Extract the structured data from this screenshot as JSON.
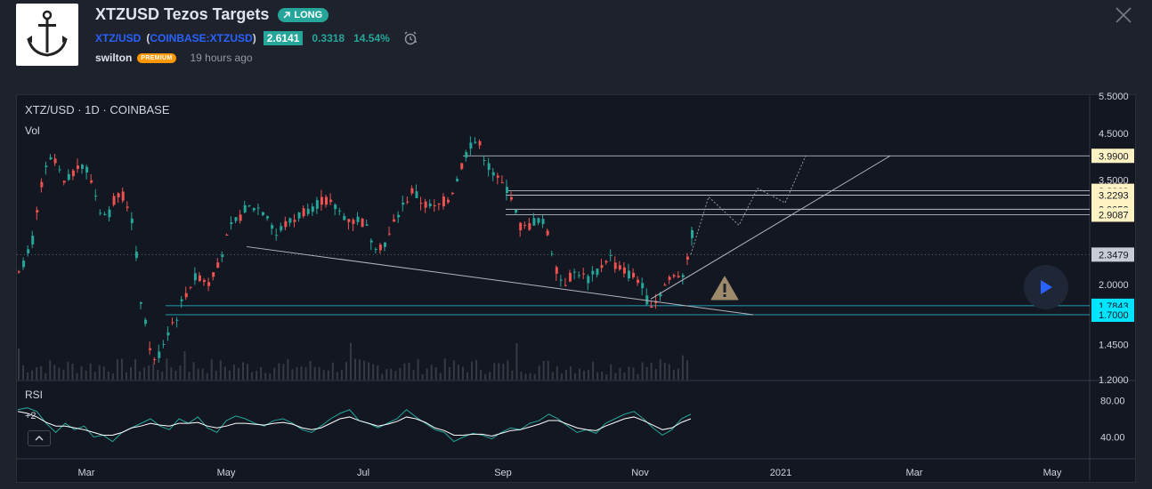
{
  "header": {
    "title": "XTZUSD Tezos Targets",
    "badge": "LONG",
    "symbol_short": "XTZ/USD",
    "symbol_full": "COINBASE:XTZUSD",
    "paren_open": "(",
    "paren_close": ")",
    "price": "2.6141",
    "change": "0.3318",
    "change_pct": "14.54%",
    "author": "swilton",
    "author_badge": "PREMIUM",
    "published": "19 hours ago"
  },
  "chart": {
    "legend": "XTZ/USD · 1D · COINBASE",
    "vol_label": "Vol",
    "rsi_label": "RSI",
    "rsi_param": "+2"
  },
  "colors": {
    "up": "#26a69a",
    "down": "#ef5350",
    "rsi_line": "#26a69a",
    "rsi_ma": "#ffffff",
    "target_label_bg": "#fff3c4",
    "support_label_bg": "#00e5ff",
    "current_label_bg": "#c9ccd4"
  },
  "icons": [
    "anchor-icon",
    "arrow-up-right-icon",
    "alarm-clock-icon",
    "close-icon",
    "chevron-up-icon",
    "play-icon",
    "warning-icon"
  ],
  "chart_data": {
    "type": "candlestick",
    "y_scale": "log",
    "ylim": [
      1.2,
      5.5
    ],
    "y_ticks": [
      "5.5000",
      "4.5000",
      "3.5000",
      "2.0000",
      "1.4500",
      "1.2000"
    ],
    "x_ticks": [
      "Mar",
      "May",
      "Jul",
      "Sep",
      "Nov",
      "2021",
      "Mar",
      "May"
    ],
    "price_labels": [
      {
        "label": "3.9900",
        "value": 3.99,
        "kind": "target"
      },
      {
        "label": "3.3069",
        "value": 3.3069,
        "kind": "target"
      },
      {
        "label": "3.2293",
        "value": 3.2293,
        "kind": "target"
      },
      {
        "label": "2.9953",
        "value": 2.9953,
        "kind": "target"
      },
      {
        "label": "2.9087",
        "value": 2.9087,
        "kind": "target"
      },
      {
        "label": "2.3479",
        "value": 2.3479,
        "kind": "current"
      },
      {
        "label": "1.7843",
        "value": 1.7843,
        "kind": "support"
      },
      {
        "label": "1.7000",
        "value": 1.7,
        "kind": "support"
      }
    ],
    "price_path": [
      2.2,
      2.3,
      2.6,
      3.4,
      3.9,
      3.8,
      3.4,
      3.6,
      3.9,
      3.7,
      3.3,
      2.9,
      2.95,
      3.3,
      3.2,
      2.8,
      1.9,
      1.5,
      1.3,
      1.45,
      1.6,
      1.7,
      1.9,
      2.05,
      2.1,
      2.0,
      2.2,
      2.4,
      2.7,
      2.85,
      3.0,
      3.05,
      3.0,
      2.9,
      2.6,
      2.75,
      2.8,
      2.9,
      3.0,
      3.05,
      3.15,
      3.1,
      3.0,
      2.9,
      2.8,
      2.85,
      2.7,
      2.5,
      2.45,
      2.6,
      2.9,
      3.1,
      3.3,
      3.15,
      3.05,
      3.0,
      3.1,
      3.2,
      3.55,
      4.0,
      4.35,
      4.2,
      3.8,
      3.55,
      3.4,
      3.3,
      2.75,
      2.7,
      2.8,
      2.85,
      2.6,
      2.2,
      2.0,
      2.1,
      2.15,
      2.05,
      2.1,
      2.2,
      2.35,
      2.2,
      2.15,
      2.1,
      2.05,
      1.85,
      1.8,
      1.95,
      2.05,
      2.1,
      2.15,
      2.6
    ],
    "rsi_ylim": [
      20,
      100
    ],
    "rsi_ticks": [
      80,
      40
    ],
    "rsi": [
      70,
      72,
      68,
      55,
      45,
      55,
      48,
      52,
      40,
      42,
      35,
      45,
      50,
      55,
      60,
      52,
      48,
      60,
      55,
      62,
      50,
      45,
      58,
      63,
      60,
      55,
      52,
      58,
      60,
      55,
      48,
      45,
      52,
      60,
      66,
      70,
      58,
      55,
      50,
      55,
      60,
      70,
      62,
      55,
      48,
      45,
      35,
      40,
      44,
      42,
      38,
      45,
      50,
      48,
      55,
      58,
      65,
      60,
      52,
      45,
      48,
      44,
      55,
      60,
      65,
      68,
      60,
      50,
      42,
      48,
      60,
      65
    ],
    "rsi_ma": [
      68,
      66,
      62,
      56,
      52,
      52,
      50,
      48,
      45,
      42,
      42,
      45,
      50,
      52,
      55,
      53,
      52,
      55,
      55,
      56,
      52,
      50,
      52,
      55,
      55,
      54,
      53,
      55,
      56,
      54,
      50,
      48,
      50,
      55,
      60,
      62,
      58,
      55,
      52,
      54,
      57,
      62,
      60,
      56,
      50,
      47,
      42,
      42,
      43,
      43,
      41,
      44,
      47,
      48,
      51,
      54,
      58,
      58,
      54,
      50,
      48,
      47,
      52,
      56,
      60,
      62,
      58,
      53,
      48,
      50,
      56,
      60
    ],
    "trendlines": [
      {
        "kind": "descending-support",
        "from": [
          0.27,
          2.45
        ],
        "to": [
          0.83,
          1.7
        ]
      },
      {
        "kind": "ascending-projection",
        "from": [
          0.71,
          1.85
        ],
        "to": [
          0.98,
          3.99
        ]
      }
    ]
  }
}
